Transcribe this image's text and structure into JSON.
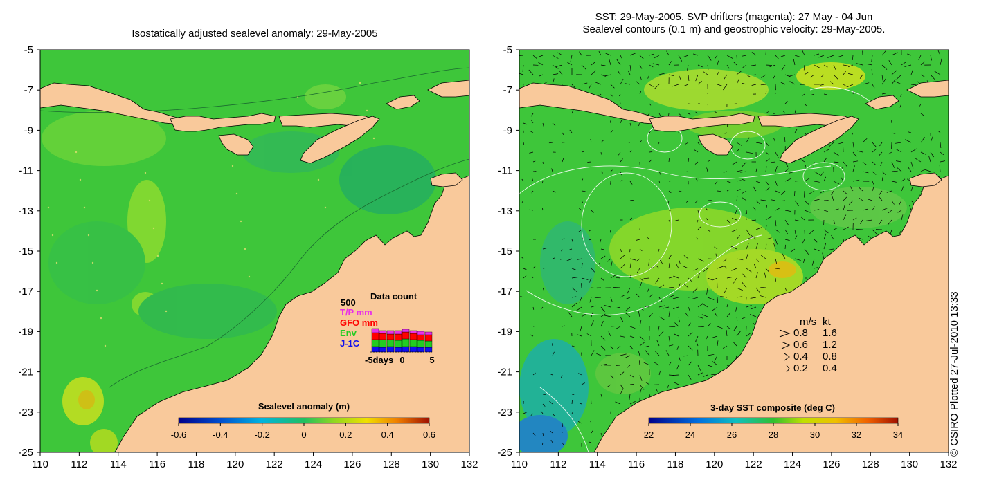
{
  "left_panel": {
    "title": "Isostatically adjusted sealevel anomaly: 29-May-2005",
    "x_ticks": [
      "110",
      "112",
      "114",
      "116",
      "118",
      "120",
      "122",
      "124",
      "126",
      "128",
      "130",
      "132"
    ],
    "y_ticks": [
      "-5",
      "-7",
      "-9",
      "-11",
      "-13",
      "-15",
      "-17",
      "-19",
      "-21",
      "-23",
      "-25"
    ],
    "colorbar": {
      "label": "Sealevel anomaly (m)",
      "ticks": [
        "-0.6",
        "-0.4",
        "-0.2",
        "0",
        "0.2",
        "0.4",
        "0.6"
      ]
    },
    "data_count": {
      "title": "Data count",
      "max_label": "500",
      "legend": [
        {
          "name": "T/P mm",
          "color": "#e830e8"
        },
        {
          "name": "GFO mm",
          "color": "#ff0000"
        },
        {
          "name": "Env",
          "color": "#22cc22"
        },
        {
          "name": "J-1C",
          "color": "#1010ee"
        }
      ],
      "x_label_left": "-5days",
      "x_label_mid": "0",
      "x_label_right": "5"
    }
  },
  "right_panel": {
    "title_line1": "SST: 29-May-2005. SVP drifters (magenta): 27 May - 04 Jun",
    "title_line2": "Sealevel contours (0.1 m) and geostrophic velocity: 29-May-2005.",
    "x_ticks": [
      "110",
      "112",
      "114",
      "116",
      "118",
      "120",
      "122",
      "124",
      "126",
      "128",
      "130",
      "132"
    ],
    "y_ticks": [
      "-5",
      "-7",
      "-9",
      "-11",
      "-13",
      "-15",
      "-17",
      "-19",
      "-21",
      "-23",
      "-25"
    ],
    "colorbar": {
      "label": "3-day SST composite (deg C)",
      "ticks": [
        "22",
        "24",
        "26",
        "28",
        "30",
        "32",
        "34"
      ]
    },
    "velocity_legend": {
      "header_ms": "m/s",
      "header_kt": "kt",
      "rows": [
        {
          "ms": "0.8",
          "kt": "1.6"
        },
        {
          "ms": "0.6",
          "kt": "1.2"
        },
        {
          "ms": "0.4",
          "kt": "0.8"
        },
        {
          "ms": "0.2",
          "kt": "0.4"
        }
      ]
    }
  },
  "credit": "© CSIRO Plotted 27-Jul-2010 13:33",
  "colors": {
    "ocean_green": "#3ec63a",
    "land": "#f9c99b",
    "coast": "#000000"
  }
}
